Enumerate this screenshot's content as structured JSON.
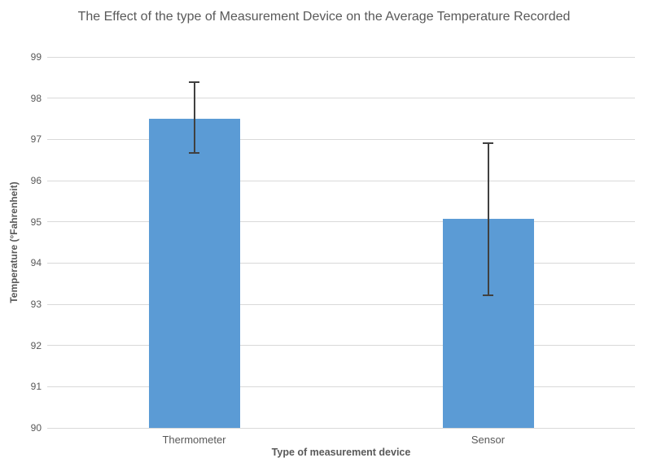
{
  "chart_data": {
    "type": "bar",
    "title": "The Effect of the type of Measurement Device on the Average Temperature Recorded",
    "xlabel": "Type of measurement device",
    "ylabel": "Temperature (°Fahrenheit)",
    "categories": [
      "Thermometer",
      "Sensor"
    ],
    "values": [
      97.5,
      95.07
    ],
    "error_bars": {
      "upper": [
        98.38,
        96.91
      ],
      "lower": [
        96.68,
        93.22
      ]
    },
    "ylim": [
      90,
      99
    ],
    "ytick_step": 1,
    "grid": "horizontal-only",
    "legend": "none",
    "colors": {
      "bar": "#5b9bd5",
      "error_bar": "#404040",
      "gridline": "#d9d9d9",
      "text": "#595959"
    }
  }
}
